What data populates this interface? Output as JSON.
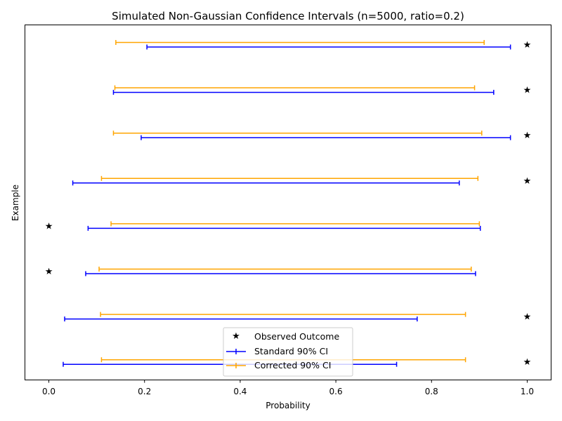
{
  "chart_data": {
    "type": "errorbar",
    "title": "Simulated Non-Gaussian Confidence Intervals (n=5000, ratio=0.2)",
    "xlabel": "Probability",
    "ylabel": "Example",
    "xlim": [
      -0.05,
      1.05
    ],
    "xticks": [
      "0.0",
      "0.2",
      "0.4",
      "0.6",
      "0.8",
      "1.0"
    ],
    "xtick_values": [
      0.0,
      0.2,
      0.4,
      0.6,
      0.8,
      1.0
    ],
    "grid": false,
    "legend_position": "lower-center",
    "legend": {
      "observed": "Observed Outcome",
      "standard": "Standard 90% CI",
      "corrected": "Corrected 90% CI"
    },
    "colors": {
      "observed": "#000000",
      "standard": "#0000ff",
      "corrected": "#ffa500"
    },
    "examples": [
      {
        "observed": 1,
        "standard": [
          0.205,
          0.965
        ],
        "corrected": [
          0.14,
          0.91
        ]
      },
      {
        "observed": 1,
        "standard": [
          0.135,
          0.93
        ],
        "corrected": [
          0.138,
          0.89
        ]
      },
      {
        "observed": 1,
        "standard": [
          0.193,
          0.965
        ],
        "corrected": [
          0.135,
          0.905
        ]
      },
      {
        "observed": 1,
        "standard": [
          0.05,
          0.858
        ],
        "corrected": [
          0.11,
          0.897
        ]
      },
      {
        "observed": 0,
        "standard": [
          0.082,
          0.902
        ],
        "corrected": [
          0.13,
          0.9
        ]
      },
      {
        "observed": 0,
        "standard": [
          0.077,
          0.892
        ],
        "corrected": [
          0.105,
          0.883
        ]
      },
      {
        "observed": 1,
        "standard": [
          0.033,
          0.77
        ],
        "corrected": [
          0.108,
          0.871
        ]
      },
      {
        "observed": 1,
        "standard": [
          0.03,
          0.727
        ],
        "corrected": [
          0.11,
          0.871
        ]
      }
    ]
  }
}
